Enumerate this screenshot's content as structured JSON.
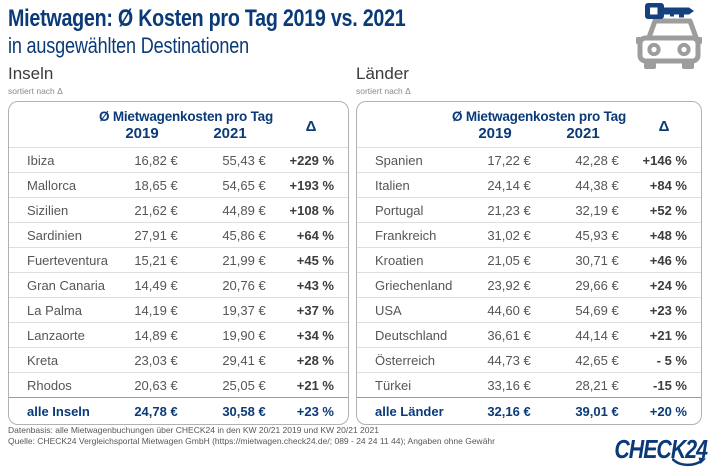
{
  "header": {
    "title_line1": "Mietwagen: Ø Kosten pro Tag 2019 vs. 2021",
    "title_line2": "in ausgewählten Destinationen"
  },
  "icons": {
    "hero": "car-with-key-icon",
    "logo_arrow": "swoosh-arrow-icon"
  },
  "colors": {
    "brand_navy": "#0a3a78",
    "key_blue": "#13427f",
    "car_gray": "#9d9d9c",
    "row_text_gray": "#565655",
    "delta_dark": "#3d3d3c",
    "border_gray": "#b2b2b2",
    "separator_gray": "#dedede"
  },
  "chart_data": [
    {
      "type": "table",
      "title": "Inseln",
      "sort_note": "sortiert nach Δ",
      "col_group": "Ø Mietwagenkosten pro Tag",
      "columns": [
        "2019",
        "2021",
        "Δ"
      ],
      "rows": [
        {
          "name": "Ibiza",
          "y2019": "16,82 €",
          "y2021": "55,43 €",
          "delta": "+229 %"
        },
        {
          "name": "Mallorca",
          "y2019": "18,65 €",
          "y2021": "54,65 €",
          "delta": "+193 %"
        },
        {
          "name": "Sizilien",
          "y2019": "21,62 €",
          "y2021": "44,89 €",
          "delta": "+108 %"
        },
        {
          "name": "Sardinien",
          "y2019": "27,91 €",
          "y2021": "45,86 €",
          "delta": "+64 %"
        },
        {
          "name": "Fuerteventura",
          "y2019": "15,21 €",
          "y2021": "21,99 €",
          "delta": "+45 %"
        },
        {
          "name": "Gran Canaria",
          "y2019": "14,49 €",
          "y2021": "20,76 €",
          "delta": "+43 %"
        },
        {
          "name": "La Palma",
          "y2019": "14,19 €",
          "y2021": "19,37 €",
          "delta": "+37 %"
        },
        {
          "name": "Lanzaorte",
          "y2019": "14,89 €",
          "y2021": "19,90 €",
          "delta": "+34 %"
        },
        {
          "name": "Kreta",
          "y2019": "23,03 €",
          "y2021": "29,41 €",
          "delta": "+28 %"
        },
        {
          "name": "Rhodos",
          "y2019": "20,63 €",
          "y2021": "25,05 €",
          "delta": "+21 %"
        }
      ],
      "summary": {
        "name": "alle Inseln",
        "y2019": "24,78 €",
        "y2021": "30,58 €",
        "delta": "+23 %"
      }
    },
    {
      "type": "table",
      "title": "Länder",
      "sort_note": "sortiert nach Δ",
      "col_group": "Ø Mietwagenkosten pro Tag",
      "columns": [
        "2019",
        "2021",
        "Δ"
      ],
      "rows": [
        {
          "name": "Spanien",
          "y2019": "17,22 €",
          "y2021": "42,28 €",
          "delta": "+146 %"
        },
        {
          "name": "Italien",
          "y2019": "24,14 €",
          "y2021": "44,38 €",
          "delta": "+84 %"
        },
        {
          "name": "Portugal",
          "y2019": "21,23 €",
          "y2021": "32,19 €",
          "delta": "+52 %"
        },
        {
          "name": "Frankreich",
          "y2019": "31,02 €",
          "y2021": "45,93 €",
          "delta": "+48 %"
        },
        {
          "name": "Kroatien",
          "y2019": "21,05 €",
          "y2021": "30,71 €",
          "delta": "+46 %"
        },
        {
          "name": "Griechenland",
          "y2019": "23,92 €",
          "y2021": "29,66 €",
          "delta": "+24 %"
        },
        {
          "name": "USA",
          "y2019": "44,60 €",
          "y2021": "54,69 €",
          "delta": "+23 %"
        },
        {
          "name": "Deutschland",
          "y2019": "36,61 €",
          "y2021": "44,14 €",
          "delta": "+21 %"
        },
        {
          "name": "Österreich",
          "y2019": "44,73 €",
          "y2021": "42,65 €",
          "delta": "- 5 %"
        },
        {
          "name": "Türkei",
          "y2019": "33,16 €",
          "y2021": "28,21 €",
          "delta": "-15 %"
        }
      ],
      "summary": {
        "name": "alle Länder",
        "y2019": "32,16 €",
        "y2021": "39,01 €",
        "delta": "+20 %"
      }
    }
  ],
  "footer": {
    "line1": "Datenbasis: alle Mietwagenbuchungen über CHECK24 in den KW 20/21 2019 und KW 20/21 2021",
    "line2": "Quelle: CHECK24 Vergleichsportal Mietwagen GmbH (https://mietwagen.check24.de/; 089 - 24 24 11 44); Angaben ohne Gewähr",
    "logo_text": "CHECK24"
  }
}
